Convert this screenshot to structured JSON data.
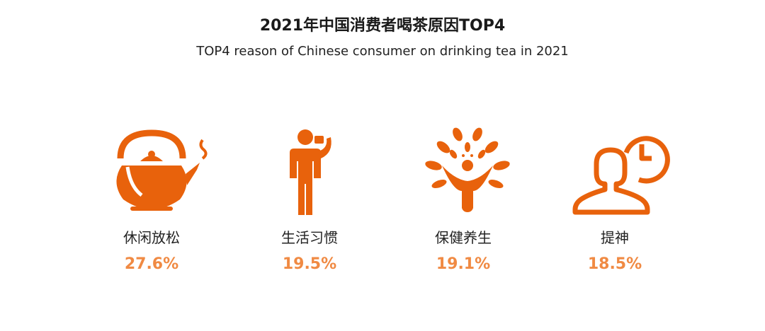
{
  "title": "2021年中国消费者喝茶原因TOP4",
  "subtitle": "TOP4 reason of Chinese consumer on drinking tea in 2021",
  "colors": {
    "icon": "#e8620c",
    "value": "#f08a43"
  },
  "chart_data": {
    "type": "bar",
    "title": "2021年中国消费者喝茶原因TOP4",
    "subtitle": "TOP4 reason of Chinese consumer on drinking tea in 2021",
    "categories": [
      "休闲放松",
      "生活习惯",
      "保健养生",
      "提神"
    ],
    "values": [
      27.6,
      19.5,
      19.1,
      18.5
    ],
    "value_labels": [
      "27.6%",
      "19.5%",
      "19.1%",
      "18.5%"
    ],
    "icons": [
      "teapot-icon",
      "person-drinking-icon",
      "tree-person-icon",
      "person-clock-icon"
    ]
  }
}
